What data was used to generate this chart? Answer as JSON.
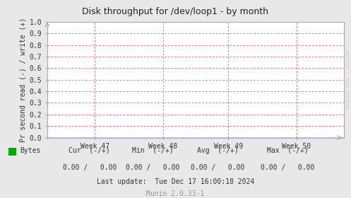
{
  "title": "Disk throughput for /dev/loop1 - by month",
  "ylabel": "Pr second read (-) / write (+)",
  "background_color": "#e8e8e8",
  "plot_bg_color": "#ffffff",
  "ylim": [
    0.0,
    1.0
  ],
  "yticks": [
    0.0,
    0.1,
    0.2,
    0.3,
    0.4,
    0.5,
    0.6,
    0.7,
    0.8,
    0.9,
    1.0
  ],
  "xtick_labels": [
    "Week 47",
    "Week 48",
    "Week 49",
    "Week 50"
  ],
  "xtick_positions": [
    0.16,
    0.39,
    0.61,
    0.84
  ],
  "legend_color": "#00aa00",
  "legend_label": "Bytes",
  "cur_label": "Cur  (-/+)",
  "cur_val": "0.00 /   0.00",
  "min_label": "Min  (-/+)",
  "min_val": "0.00 /   0.00",
  "avg_label": "Avg  (-/+)",
  "avg_val": "0.00 /   0.00",
  "max_label": "Max  (-/+)",
  "max_val": "0.00 /   0.00",
  "last_update": "Last update:  Tue Dec 17 16:00:18 2024",
  "munin_version": "Munin 2.0.33-1",
  "watermark": "RRDTOOL / TOBI OETIKER",
  "title_fontsize": 9,
  "tick_fontsize": 7,
  "ylabel_fontsize": 7,
  "footer_fontsize": 7,
  "watermark_fontsize": 4.5,
  "line_color": "#0000dd",
  "grid_color": "#dd4444",
  "spine_color": "#aaaaaa",
  "arrow_color": "#aaaaaa"
}
